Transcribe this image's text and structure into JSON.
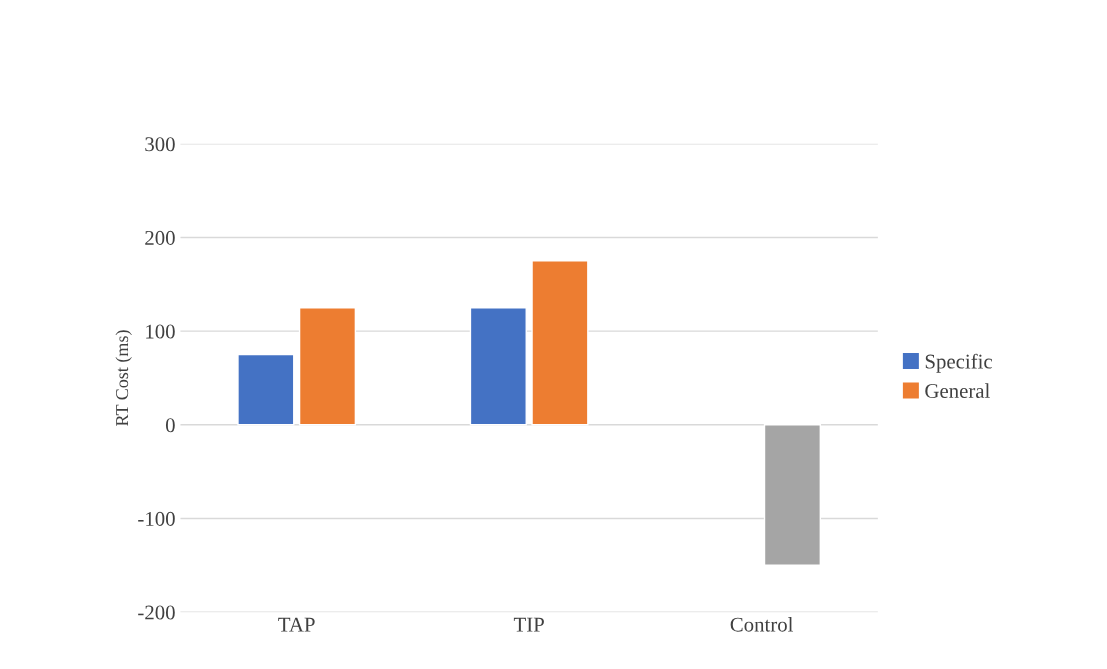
{
  "chart_data": {
    "type": "bar",
    "ylabel": "RT Cost (ms)",
    "categories": [
      "TAP",
      "TIP",
      "Control"
    ],
    "series": [
      {
        "name": "Specific",
        "color": "#4472c4",
        "values": [
          75,
          125,
          null
        ]
      },
      {
        "name": "General",
        "color": "#ed7d31",
        "colors": [
          "#ed7d31",
          "#ed7d31",
          "#a5a5a5"
        ],
        "values": [
          125,
          175,
          -150
        ]
      }
    ],
    "ylim": [
      -200,
      300
    ],
    "yticks": [
      -200,
      -100,
      0,
      100,
      200,
      300
    ],
    "grid": "y",
    "legend": "right"
  }
}
